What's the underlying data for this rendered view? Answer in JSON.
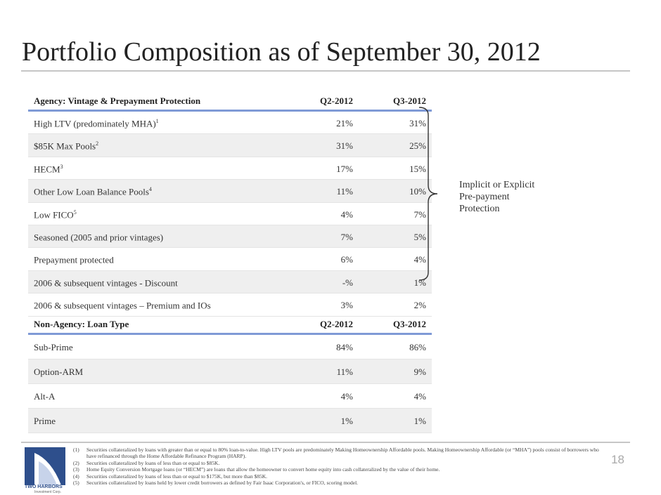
{
  "page": {
    "title": "Portfolio Composition as of September 30, 2012",
    "page_number": "18"
  },
  "agency_table": {
    "header": {
      "label": "Agency: Vintage & Prepayment Protection",
      "col1": "Q2-2012",
      "col2": "Q3-2012"
    },
    "rows": [
      {
        "label": "High LTV (predominately MHA)",
        "sup": "1",
        "q2": "21%",
        "q3": "31%"
      },
      {
        "label": "$85K Max Pools",
        "sup": "2",
        "q2": "31%",
        "q3": "25%"
      },
      {
        "label": "HECM",
        "sup": "3",
        "q2": "17%",
        "q3": "15%"
      },
      {
        "label": "Other Low Loan Balance Pools",
        "sup": "4",
        "q2": "11%",
        "q3": "10%"
      },
      {
        "label": "Low FICO",
        "sup": "5",
        "q2": "4%",
        "q3": "7%"
      },
      {
        "label": "Seasoned (2005 and prior vintages)",
        "sup": "",
        "q2": "7%",
        "q3": "5%"
      },
      {
        "label": "Prepayment protected",
        "sup": "",
        "q2": "6%",
        "q3": "4%"
      },
      {
        "label": "2006 & subsequent vintages - Discount",
        "sup": "",
        "q2": "-%",
        "q3": "1%"
      },
      {
        "label": "2006 & subsequent vintages – Premium and IOs",
        "sup": "",
        "q2": "3%",
        "q3": "2%"
      }
    ]
  },
  "nonagency_table": {
    "header": {
      "label": "Non-Agency: Loan Type",
      "col1": "Q2-2012",
      "col2": "Q3-2012"
    },
    "rows": [
      {
        "label": "Sub-Prime",
        "q2": "84%",
        "q3": "86%"
      },
      {
        "label": "Option-ARM",
        "q2": "11%",
        "q3": "9%"
      },
      {
        "label": "Alt-A",
        "q2": "4%",
        "q3": "4%"
      },
      {
        "label": "Prime",
        "q2": "1%",
        "q3": "1%"
      }
    ]
  },
  "bracket_label": [
    "Implicit or Explicit",
    "Pre-payment",
    "Protection"
  ],
  "footnotes": [
    {
      "n": "(1)",
      "text": "Securities collateralized by loans with greater than or equal to 80% loan-to-value. High LTV pools are predominately Making Homeownership Affordable pools. Making Homeownership Affordable (or “MHA”) pools consist of borrowers who have refinanced through the Home Affordable Refinance Program (HARP)."
    },
    {
      "n": "(2)",
      "text": "Securities collateralized by loans of less than or equal to $85K."
    },
    {
      "n": "(3)",
      "text": "Home Equity Conversion Mortgage loans (or “HECM”) are loans that allow the homeowner to convert home equity into cash collateralized by the value of their home."
    },
    {
      "n": "(4)",
      "text": "Securities collateralized by loans of less than or equal to $175K, but more than $85K."
    },
    {
      "n": "(5)",
      "text": "Securities collateralized by loans held by lower credit borrowers as defined by Fair Isaac Corporation's, or FICO, scoring model."
    }
  ],
  "logo": {
    "name": "TWO HARBORS",
    "sub": "Investment Corp."
  },
  "colors": {
    "accent_rule": "#7f9ad6",
    "row_alt": "#efefef",
    "logo_blue": "#2e4f8c"
  }
}
